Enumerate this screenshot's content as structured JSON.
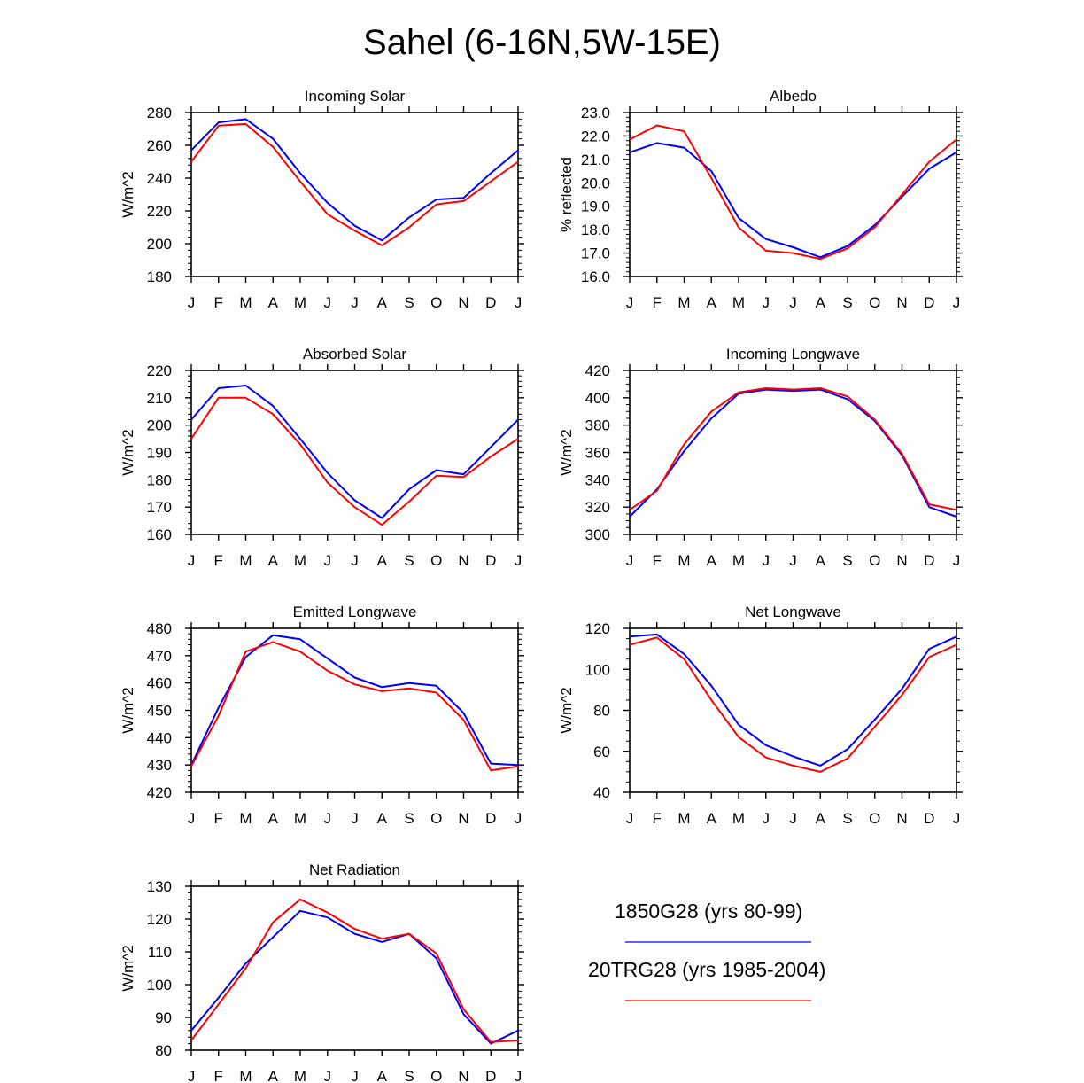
{
  "title": "Sahel (6-16N,5W-15E)",
  "colors": {
    "series_1850": "#0000ff",
    "series_20tr": "#ff0000",
    "axis": "#000000"
  },
  "legend": {
    "items": [
      {
        "label": "1850G28 (yrs 80-99)",
        "color": "#0000ff"
      },
      {
        "label": "20TRG28 (yrs 1985-2004)",
        "color": "#ff0000"
      }
    ]
  },
  "chart_data": [
    {
      "id": "incoming-solar",
      "type": "line",
      "title": "Incoming Solar",
      "ylabel": "W/m^2",
      "categories": [
        "J",
        "F",
        "M",
        "A",
        "M",
        "J",
        "J",
        "A",
        "S",
        "O",
        "N",
        "D",
        "J"
      ],
      "ylim": [
        180,
        280
      ],
      "yticks": [
        180,
        200,
        220,
        240,
        260,
        280
      ],
      "ytick_labels": [
        "180",
        "200",
        "220",
        "240",
        "260",
        "280"
      ],
      "yminor": 5,
      "series": [
        {
          "name": "1850G28 (yrs 80-99)",
          "color": "#0000ff",
          "values": [
            257,
            274,
            276,
            264,
            243,
            225,
            211,
            202,
            216,
            227,
            228,
            243,
            257
          ]
        },
        {
          "name": "20TRG28 (yrs 1985-2004)",
          "color": "#ff0000",
          "values": [
            250,
            272,
            273,
            259,
            238,
            218,
            208,
            199,
            210,
            224,
            226,
            238,
            250
          ]
        }
      ]
    },
    {
      "id": "albedo",
      "type": "line",
      "title": "Albedo",
      "ylabel": "% reflected",
      "categories": [
        "J",
        "F",
        "M",
        "A",
        "M",
        "J",
        "J",
        "A",
        "S",
        "O",
        "N",
        "D",
        "J"
      ],
      "ylim": [
        16,
        23
      ],
      "yticks": [
        16,
        17,
        18,
        19,
        20,
        21,
        22,
        23
      ],
      "ytick_labels": [
        "16.0",
        "17.0",
        "18.0",
        "19.0",
        "20.0",
        "21.0",
        "22.0",
        "23.0"
      ],
      "yminor": 5,
      "series": [
        {
          "name": "1850G28 (yrs 80-99)",
          "color": "#0000ff",
          "values": [
            21.3,
            21.7,
            21.5,
            20.5,
            18.5,
            17.6,
            17.25,
            16.82,
            17.3,
            18.2,
            19.4,
            20.6,
            21.3
          ]
        },
        {
          "name": "20TRG28 (yrs 1985-2004)",
          "color": "#ff0000",
          "values": [
            21.85,
            22.45,
            22.2,
            20.2,
            18.1,
            17.1,
            17.0,
            16.75,
            17.2,
            18.1,
            19.5,
            20.9,
            21.85
          ]
        }
      ]
    },
    {
      "id": "absorbed-solar",
      "type": "line",
      "title": "Absorbed Solar",
      "ylabel": "W/m^2",
      "categories": [
        "J",
        "F",
        "M",
        "A",
        "M",
        "J",
        "J",
        "A",
        "S",
        "O",
        "N",
        "D",
        "J"
      ],
      "ylim": [
        160,
        220
      ],
      "yticks": [
        160,
        170,
        180,
        190,
        200,
        210,
        220
      ],
      "ytick_labels": [
        "160",
        "170",
        "180",
        "190",
        "200",
        "210",
        "220"
      ],
      "yminor": 5,
      "series": [
        {
          "name": "1850G28 (yrs 80-99)",
          "color": "#0000ff",
          "values": [
            202,
            213.5,
            214.5,
            207,
            195,
            182.5,
            172.5,
            166,
            176.5,
            183.5,
            182,
            192,
            202
          ]
        },
        {
          "name": "20TRG28 (yrs 1985-2004)",
          "color": "#ff0000",
          "values": [
            195,
            210,
            210,
            204,
            193,
            179,
            170,
            163.5,
            172,
            181.5,
            181,
            188.5,
            195
          ]
        }
      ]
    },
    {
      "id": "incoming-longwave",
      "type": "line",
      "title": "Incoming Longwave",
      "ylabel": "W/m^2",
      "categories": [
        "J",
        "F",
        "M",
        "A",
        "M",
        "J",
        "J",
        "A",
        "S",
        "O",
        "N",
        "D",
        "J"
      ],
      "ylim": [
        300,
        420
      ],
      "yticks": [
        300,
        320,
        340,
        360,
        380,
        400,
        420
      ],
      "ytick_labels": [
        "300",
        "320",
        "340",
        "360",
        "380",
        "400",
        "420"
      ],
      "yminor": 4,
      "series": [
        {
          "name": "1850G28 (yrs 80-99)",
          "color": "#0000ff",
          "values": [
            313,
            333,
            361,
            385,
            403,
            406,
            405,
            406,
            399,
            383,
            358,
            320,
            313
          ]
        },
        {
          "name": "20TRG28 (yrs 1985-2004)",
          "color": "#ff0000",
          "values": [
            318,
            332,
            366,
            390,
            404,
            407,
            406,
            407,
            401,
            384,
            359,
            322,
            318
          ]
        }
      ]
    },
    {
      "id": "emitted-longwave",
      "type": "line",
      "title": "Emitted Longwave",
      "ylabel": "W/m^2",
      "categories": [
        "J",
        "F",
        "M",
        "A",
        "M",
        "J",
        "J",
        "A",
        "S",
        "O",
        "N",
        "D",
        "J"
      ],
      "ylim": [
        420,
        480
      ],
      "yticks": [
        420,
        430,
        440,
        450,
        460,
        470,
        480
      ],
      "ytick_labels": [
        "420",
        "430",
        "440",
        "450",
        "460",
        "470",
        "480"
      ],
      "yminor": 5,
      "series": [
        {
          "name": "1850G28 (yrs 80-99)",
          "color": "#0000ff",
          "values": [
            430,
            451,
            469.5,
            477.5,
            476,
            469,
            462,
            458.5,
            460,
            459,
            449,
            430.5,
            430
          ]
        },
        {
          "name": "20TRG28 (yrs 1985-2004)",
          "color": "#ff0000",
          "values": [
            429.5,
            448,
            471.5,
            475,
            471.5,
            464.5,
            459.5,
            457,
            458,
            456.5,
            446.5,
            428,
            429.5
          ]
        }
      ]
    },
    {
      "id": "net-longwave",
      "type": "line",
      "title": "Net Longwave",
      "ylabel": "W/m^2",
      "categories": [
        "J",
        "F",
        "M",
        "A",
        "M",
        "J",
        "J",
        "A",
        "S",
        "O",
        "N",
        "D",
        "J"
      ],
      "ylim": [
        40,
        120
      ],
      "yticks": [
        40,
        60,
        80,
        100,
        120
      ],
      "ytick_labels": [
        "40",
        "60",
        "80",
        "100",
        "120"
      ],
      "yminor": 4,
      "series": [
        {
          "name": "1850G28 (yrs 80-99)",
          "color": "#0000ff",
          "values": [
            116,
            117,
            107.5,
            92,
            73,
            63,
            57.5,
            53,
            61,
            75.5,
            90.5,
            110,
            116
          ]
        },
        {
          "name": "20TRG28 (yrs 1985-2004)",
          "color": "#ff0000",
          "values": [
            112,
            115.5,
            105,
            85,
            67,
            57,
            53,
            50,
            56.5,
            72,
            87.5,
            106,
            112
          ]
        }
      ]
    },
    {
      "id": "net-radiation",
      "type": "line",
      "title": "Net Radiation",
      "ylabel": "W/m^2",
      "categories": [
        "J",
        "F",
        "M",
        "A",
        "M",
        "J",
        "J",
        "A",
        "S",
        "O",
        "N",
        "D",
        "J"
      ],
      "ylim": [
        80,
        130
      ],
      "yticks": [
        80,
        90,
        100,
        110,
        120,
        130
      ],
      "ytick_labels": [
        "80",
        "90",
        "100",
        "110",
        "120",
        "130"
      ],
      "yminor": 5,
      "series": [
        {
          "name": "1850G28 (yrs 80-99)",
          "color": "#0000ff",
          "values": [
            86,
            96,
            106.5,
            114.5,
            122.5,
            120.5,
            115.5,
            113,
            115.5,
            108,
            91,
            82,
            86
          ]
        },
        {
          "name": "20TRG28 (yrs 1985-2004)",
          "color": "#ff0000",
          "values": [
            83,
            94,
            105,
            119,
            126,
            122,
            117,
            114,
            115.5,
            109.5,
            92.5,
            82.5,
            83
          ]
        }
      ]
    }
  ]
}
